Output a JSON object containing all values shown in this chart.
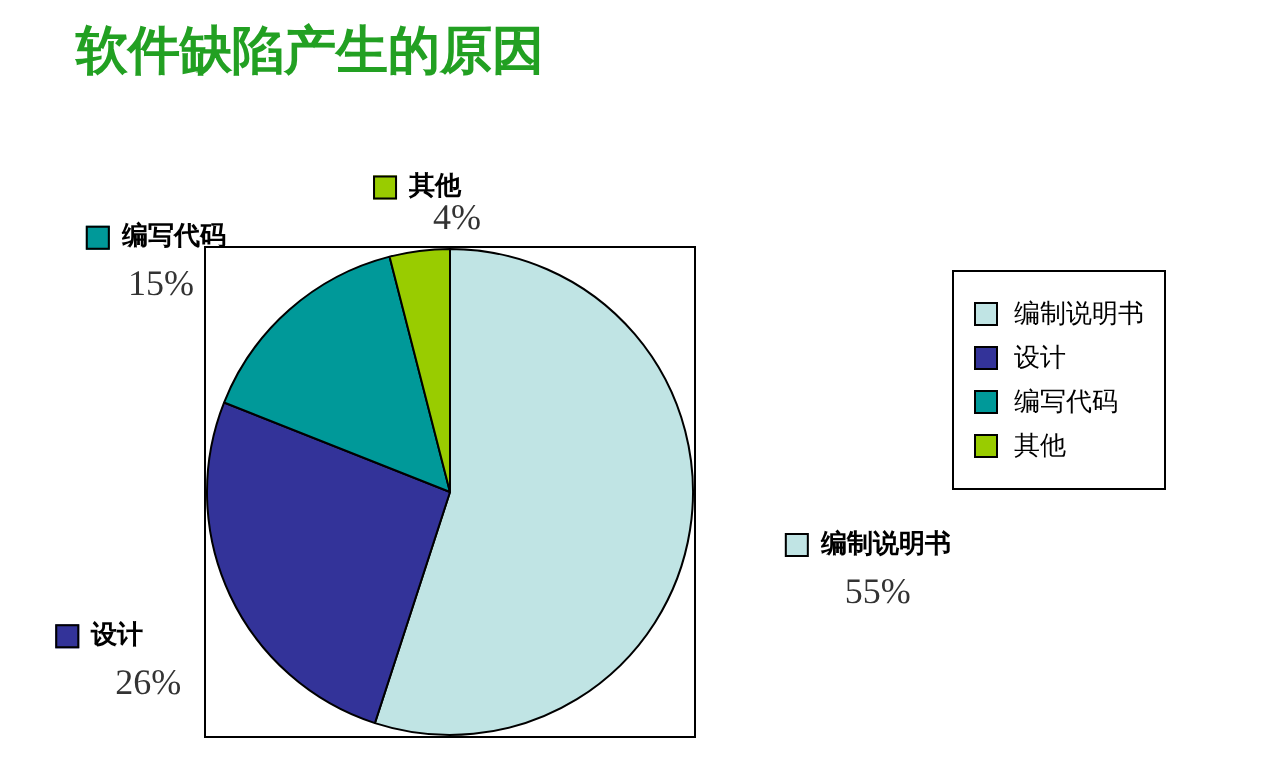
{
  "chart_data": {
    "type": "pie",
    "title": "软件缺陷产生的原因",
    "categories": [
      "编制说明书",
      "设计",
      "编写代码",
      "其他"
    ],
    "values": [
      55,
      26,
      15,
      4
    ],
    "colors": [
      "#c0e4e4",
      "#333399",
      "#009999",
      "#99cc00"
    ],
    "value_labels": [
      "55%",
      "26%",
      "15%",
      "4%"
    ],
    "legend": "right"
  }
}
